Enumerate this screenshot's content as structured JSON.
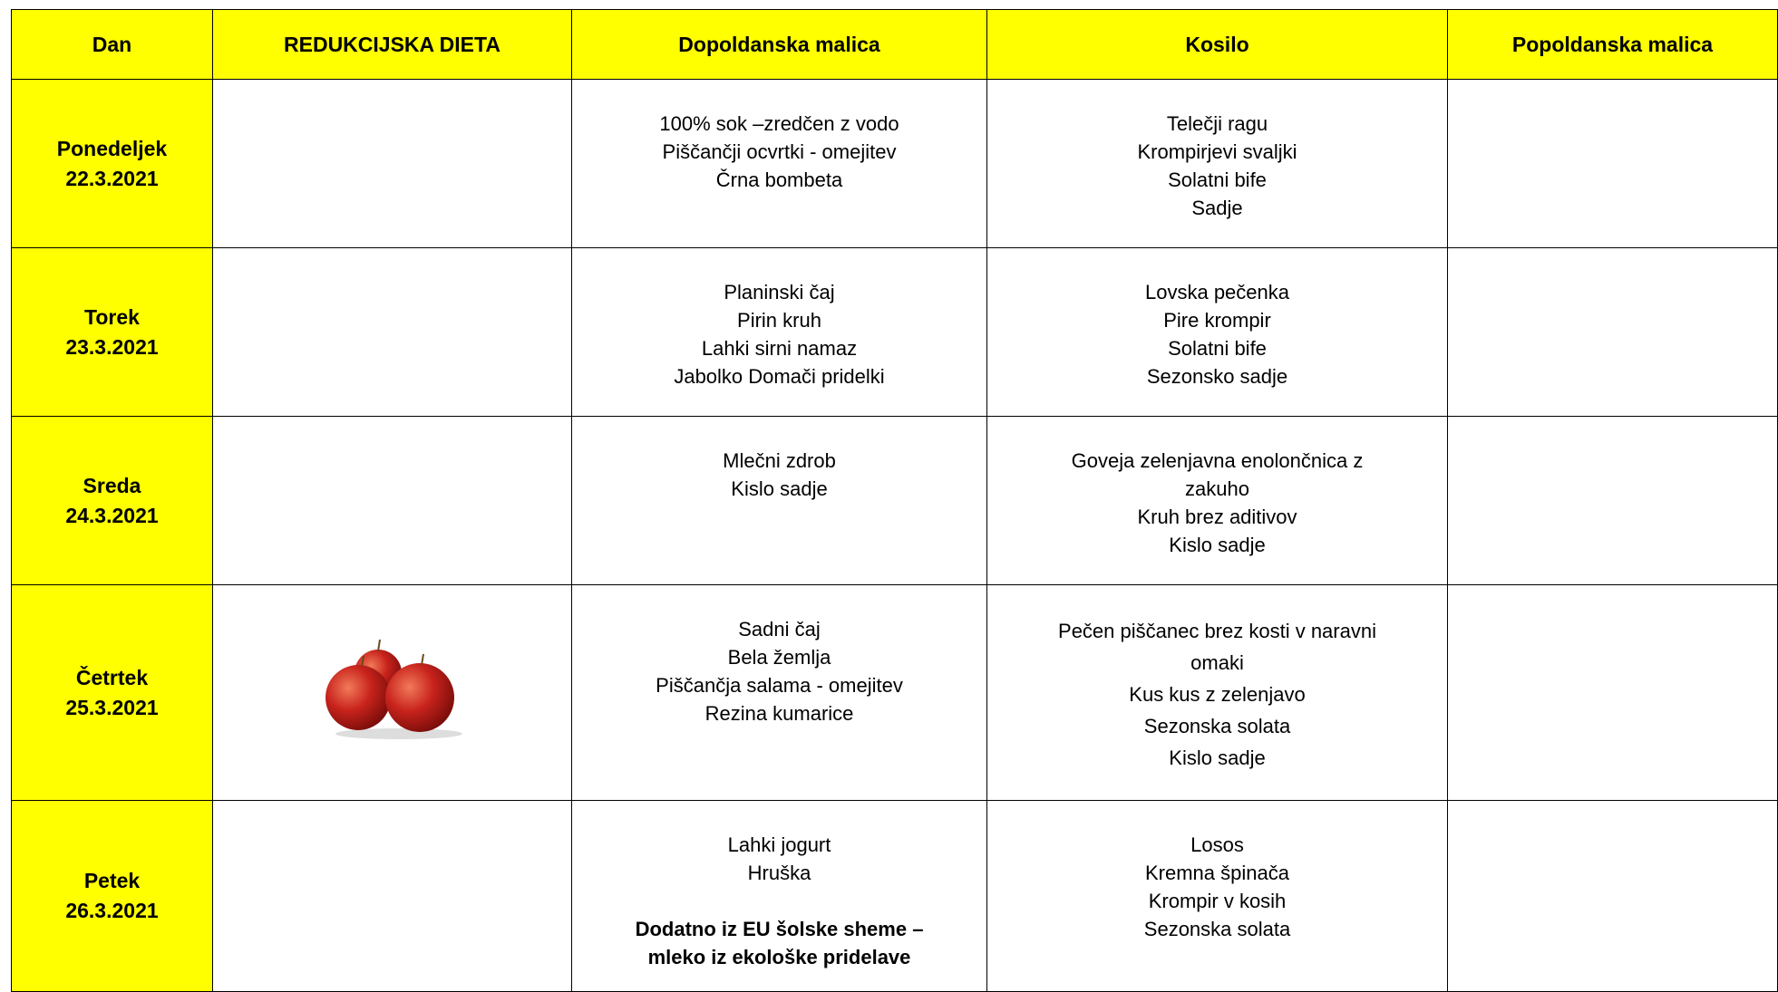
{
  "header": [
    "Dan",
    "REDUKCIJSKA DIETA",
    "Dopoldanska malica",
    "Kosilo",
    "Popoldanska malica"
  ],
  "rows": [
    {
      "day": "Ponedeljek",
      "date": "22.3.2021",
      "malica": [
        "100% sok –zredčen z vodo",
        "Piščančji ocvrtki - omejitev",
        "Črna bombeta"
      ],
      "kosilo": [
        "Telečji ragu",
        "Krompirjevi svaljki",
        "Solatni bife",
        "Sadje"
      ]
    },
    {
      "day": "Torek",
      "date": "23.3.2021",
      "malica": [
        "Planinski čaj",
        "Pirin kruh",
        "Lahki sirni namaz",
        "Jabolko Domači pridelki"
      ],
      "kosilo": [
        "Lovska pečenka",
        "Pire krompir",
        "Solatni bife",
        "Sezonsko sadje"
      ]
    },
    {
      "day": "Sreda",
      "date": "24.3.2021",
      "malica": [
        "Mlečni zdrob",
        "Kislo sadje"
      ],
      "kosilo": [
        "Goveja zelenjavna enolončnica z",
        "zakuho",
        "Kruh brez aditivov",
        "Kislo sadje"
      ]
    },
    {
      "day": "Četrtek",
      "date": "25.3.2021",
      "malica": [
        "Sadni čaj",
        "Bela žemlja",
        "Piščančja salama - omejitev",
        "Rezina kumarice"
      ],
      "kosilo": [
        "Pečen piščanec brez kosti v naravni",
        "omaki",
        "Kus kus z zelenjavo",
        "Sezonska solata",
        "Kislo sadje"
      ]
    },
    {
      "day": "Petek",
      "date": "26.3.2021",
      "malica": [
        "Lahki jogurt",
        "Hruška"
      ],
      "note": [
        "Dodatno iz EU šolske sheme –",
        "mleko iz ekološke pridelave"
      ],
      "kosilo": [
        "Losos",
        "Kremna špinača",
        "Krompir v kosih",
        "Sezonska solata"
      ]
    }
  ]
}
